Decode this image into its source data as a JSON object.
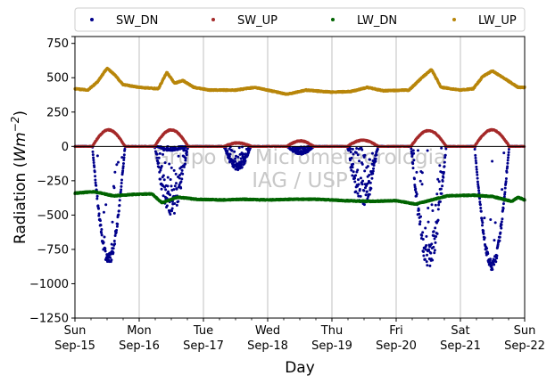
{
  "chart_data": {
    "type": "scatter",
    "xlabel": "Day",
    "ylabel_main": "Radiation (",
    "ylabel_unit": "Wm",
    "ylabel_exp": "−2",
    "ylabel_close": ")",
    "xlim": [
      0,
      7
    ],
    "ylim": [
      -1250,
      800
    ],
    "yticks": [
      800,
      750,
      500,
      250,
      0,
      -250,
      -500,
      -750,
      -1000,
      -1250
    ],
    "ytick_labels": [
      "",
      "750",
      "500",
      "250",
      "0",
      "−250",
      "−500",
      "−750",
      "−1000",
      "−1250"
    ],
    "xticks": [
      {
        "x": 0,
        "day": "Sun",
        "date": "Sep-15"
      },
      {
        "x": 1,
        "day": "Mon",
        "date": "Sep-16"
      },
      {
        "x": 2,
        "day": "Tue",
        "date": "Sep-17"
      },
      {
        "x": 3,
        "day": "Wed",
        "date": "Sep-18"
      },
      {
        "x": 4,
        "day": "Thu",
        "date": "Sep-19"
      },
      {
        "x": 5,
        "day": "Fri",
        "date": "Sep-20"
      },
      {
        "x": 6,
        "day": "Sat",
        "date": "Sep-21"
      },
      {
        "x": 7,
        "day": "Sun",
        "date": "Sep-22"
      }
    ],
    "grid": "vertical",
    "zero_line": true,
    "legend_position": "top",
    "watermark": [
      "Grupo de Micrometeorologia",
      "IAG / USP"
    ],
    "series": [
      {
        "name": "SW_DN",
        "color": "#00008b",
        "days": [
          {
            "peak": -860,
            "start": 0.27,
            "end": 0.78,
            "scatter": 0.1
          },
          {
            "peak": -520,
            "start": 1.24,
            "end": 1.76,
            "scatter": 0.45
          },
          {
            "peak": -30,
            "start": 1.27,
            "end": 1.75,
            "scatter": 0.3
          },
          {
            "peak": -180,
            "start": 2.32,
            "end": 2.74,
            "scatter": 0.35
          },
          {
            "peak": -60,
            "start": 3.3,
            "end": 3.72,
            "scatter": 0.4
          },
          {
            "peak": -470,
            "start": 4.24,
            "end": 4.72,
            "scatter": 0.5
          },
          {
            "peak": -890,
            "start": 5.23,
            "end": 5.78,
            "scatter": 0.25
          },
          {
            "peak": -900,
            "start": 6.22,
            "end": 6.76,
            "scatter": 0.08
          }
        ]
      },
      {
        "name": "SW_UP",
        "color": "#a52a2a",
        "days": [
          {
            "peak": 120,
            "start": 0.27,
            "end": 0.78
          },
          {
            "peak": 120,
            "start": 1.24,
            "end": 1.76
          },
          {
            "peak": 25,
            "start": 2.32,
            "end": 2.74
          },
          {
            "peak": 40,
            "start": 3.3,
            "end": 3.72
          },
          {
            "peak": 45,
            "start": 4.24,
            "end": 4.72
          },
          {
            "peak": 115,
            "start": 5.23,
            "end": 5.78
          },
          {
            "peak": 120,
            "start": 6.22,
            "end": 6.76
          }
        ]
      },
      {
        "name": "LW_DN",
        "color": "#006400",
        "points": [
          [
            0.0,
            -340
          ],
          [
            0.3,
            -330
          ],
          [
            0.6,
            -360
          ],
          [
            0.9,
            -350
          ],
          [
            1.2,
            -345
          ],
          [
            1.35,
            -410
          ],
          [
            1.6,
            -370
          ],
          [
            1.9,
            -385
          ],
          [
            2.3,
            -390
          ],
          [
            2.6,
            -385
          ],
          [
            3.0,
            -390
          ],
          [
            3.4,
            -385
          ],
          [
            3.8,
            -385
          ],
          [
            4.2,
            -395
          ],
          [
            4.6,
            -400
          ],
          [
            5.0,
            -395
          ],
          [
            5.3,
            -420
          ],
          [
            5.55,
            -390
          ],
          [
            5.8,
            -360
          ],
          [
            6.2,
            -355
          ],
          [
            6.5,
            -365
          ],
          [
            6.8,
            -400
          ],
          [
            6.9,
            -370
          ],
          [
            7.0,
            -390
          ]
        ]
      },
      {
        "name": "LW_UP",
        "color": "#b8860b",
        "points": [
          [
            0.0,
            420
          ],
          [
            0.2,
            410
          ],
          [
            0.35,
            470
          ],
          [
            0.5,
            570
          ],
          [
            0.62,
            520
          ],
          [
            0.75,
            450
          ],
          [
            1.0,
            430
          ],
          [
            1.3,
            420
          ],
          [
            1.43,
            540
          ],
          [
            1.55,
            460
          ],
          [
            1.68,
            480
          ],
          [
            1.85,
            430
          ],
          [
            2.1,
            410
          ],
          [
            2.5,
            410
          ],
          [
            2.8,
            430
          ],
          [
            3.1,
            400
          ],
          [
            3.3,
            380
          ],
          [
            3.6,
            410
          ],
          [
            4.0,
            395
          ],
          [
            4.3,
            400
          ],
          [
            4.55,
            430
          ],
          [
            4.8,
            405
          ],
          [
            5.2,
            410
          ],
          [
            5.4,
            500
          ],
          [
            5.55,
            560
          ],
          [
            5.7,
            430
          ],
          [
            6.0,
            410
          ],
          [
            6.2,
            420
          ],
          [
            6.35,
            510
          ],
          [
            6.5,
            550
          ],
          [
            6.7,
            490
          ],
          [
            6.9,
            430
          ],
          [
            7.0,
            430
          ]
        ]
      }
    ]
  }
}
